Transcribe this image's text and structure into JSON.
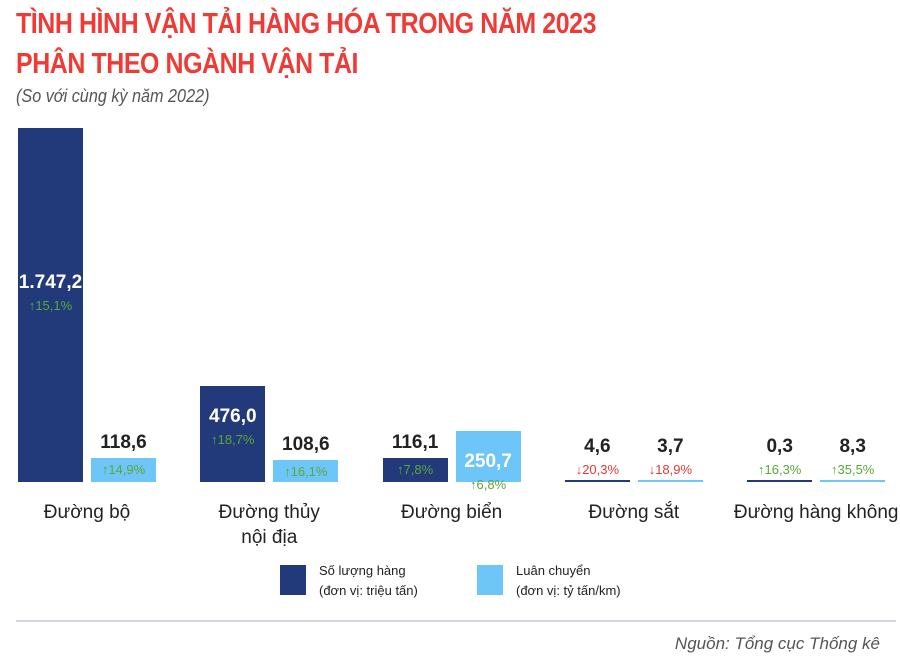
{
  "title_line1": "TÌNH HÌNH VẬN TẢI HÀNG HÓA TRONG NĂM 2023",
  "title_line2": "PHÂN THEO NGÀNH VẬN TẢI",
  "subtitle": "(So với cùng kỳ năm 2022)",
  "source": "Nguồn: Tổng cục Thống kê",
  "colors": {
    "volume": "#233a7a",
    "rotation": "#6ec5f7",
    "up": "#5aa838",
    "down": "#e53935",
    "title": "#f03a35"
  },
  "legend": [
    {
      "label": "Số lượng hàng\n(đơn vị: triệu tấn)"
    },
    {
      "label": "Luân chuyển\n(đơn vị: tỷ tấn/km)"
    }
  ],
  "chart_data": {
    "type": "bar",
    "title": "TÌNH HÌNH VẬN TẢI HÀNG HÓA TRONG NĂM 2023 PHÂN THEO NGÀNH VẬN TẢI",
    "subtitle": "(So với cùng kỳ năm 2022)",
    "categories": [
      "Đường bộ",
      "Đường thủy\nnội địa",
      "Đường biển",
      "Đường sắt",
      "Đường hàng không"
    ],
    "series": [
      {
        "name": "Số lượng hàng (đơn vị: triệu tấn)",
        "values": [
          1747.2,
          476.0,
          116.1,
          4.6,
          0.3
        ],
        "labels": [
          "1.747,2",
          "476,0",
          "116,1",
          "4,6",
          "0,3"
        ],
        "change": [
          "↑15,1%",
          "↑18,7%",
          "↑7,8%",
          "↓20,3%",
          "↑16,3%"
        ],
        "direction": [
          "up",
          "up",
          "up",
          "down",
          "up"
        ]
      },
      {
        "name": "Luân chuyển (đơn vị: tỷ tấn/km)",
        "values": [
          118.6,
          108.6,
          250.7,
          3.7,
          8.3
        ],
        "labels": [
          "118,6",
          "108,6",
          "250,7",
          "3,7",
          "8,3"
        ],
        "change": [
          "↑14,9%",
          "↑16,1%",
          "↑6,8%",
          "↓18,9%",
          "↑35,5%"
        ],
        "direction": [
          "up",
          "up",
          "up",
          "down",
          "up"
        ]
      }
    ],
    "grid": false,
    "legend_position": "bottom"
  }
}
